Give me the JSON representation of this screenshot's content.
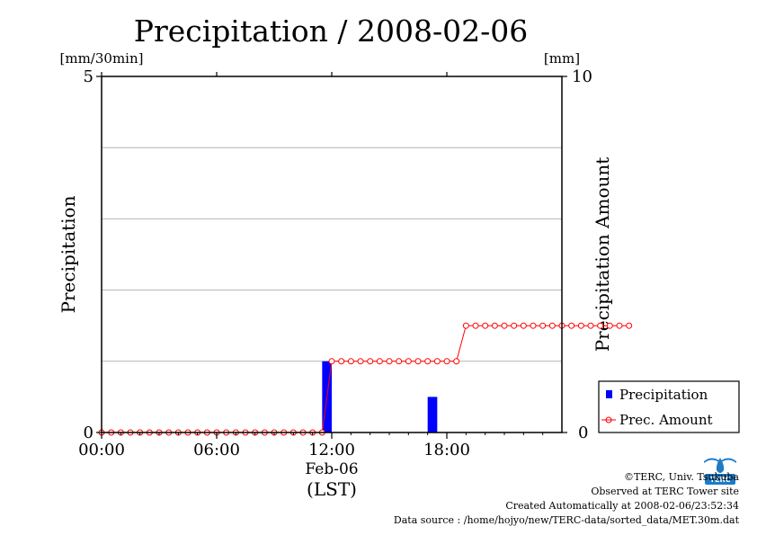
{
  "chart_data": {
    "type": "bar",
    "title": "Precipitation / 2008-02-06",
    "left_axis": {
      "unit": "[mm/30min]",
      "label": "Precipitation",
      "range": [
        0,
        5
      ],
      "tick_labels": [
        "5",
        "0"
      ]
    },
    "right_axis": {
      "unit": "[mm]",
      "label": "Precipitation Amount",
      "range": [
        0,
        10
      ],
      "tick_labels": [
        "10",
        "0"
      ]
    },
    "x_axis": {
      "range_hours": [
        0,
        24
      ],
      "ticks": [
        {
          "hour": 0,
          "label": "00:00"
        },
        {
          "hour": 6,
          "label": "06:00"
        },
        {
          "hour": 12,
          "label": "12:00"
        },
        {
          "hour": 18,
          "label": "18:00"
        }
      ],
      "date_label": "Feb-06",
      "zone_label": "(LST)"
    },
    "grid_y": [
      1,
      2,
      3,
      4
    ],
    "series": [
      {
        "name": "Precipitation",
        "kind": "bar",
        "color": "#0000ff",
        "points": [
          {
            "hour": 11.5,
            "value": 1.0
          },
          {
            "hour": 17.0,
            "value": 0.5
          }
        ]
      },
      {
        "name": "Prec. Amount",
        "kind": "line",
        "color": "#ff0000",
        "axis": "right",
        "x_start_hour": 0,
        "x_step_hour": 0.5,
        "values": [
          0,
          0,
          0,
          0,
          0,
          0,
          0,
          0,
          0,
          0,
          0,
          0,
          0,
          0,
          0,
          0,
          0,
          0,
          0,
          0,
          0,
          0,
          0,
          0,
          2.0,
          2.0,
          2.0,
          2.0,
          2.0,
          2.0,
          2.0,
          2.0,
          2.0,
          2.0,
          2.0,
          2.0,
          2.0,
          2.0,
          3.0,
          3.0,
          3.0,
          3.0,
          3.0,
          3.0,
          3.0,
          3.0,
          3.0,
          3.0,
          3.0,
          3.0,
          3.0,
          3.0,
          3.0,
          3.0,
          3.0,
          3.0
        ]
      }
    ],
    "legend": {
      "position": "bottom-right",
      "entries": [
        "Precipitation",
        "Prec. Amount"
      ]
    }
  },
  "credits": {
    "copyright": "©TERC, Univ. Tsukuba",
    "observed": "Observed at TERC Tower site",
    "created": "Created Automatically at 2008-02-06/23:52:34",
    "source": "Data source : /home/hojyo/new/TERC-data/sorted_data/MET.30m.dat"
  },
  "logo": {
    "text": "TERC",
    "color": "#1e7bc6"
  }
}
